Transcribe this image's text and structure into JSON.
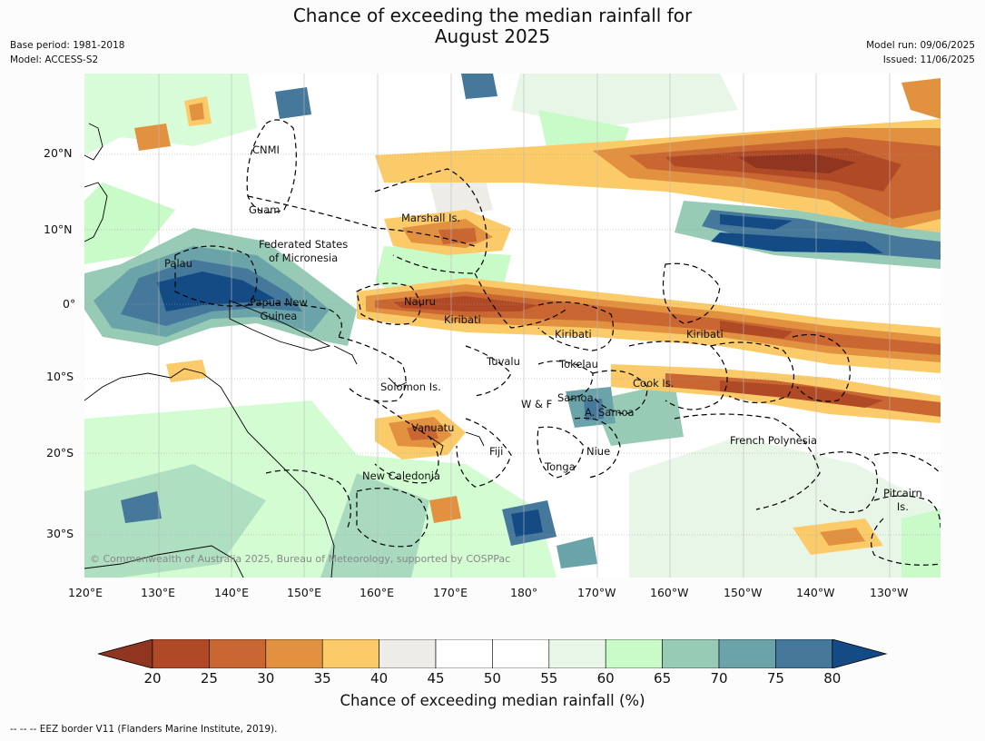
{
  "header": {
    "title_line1": "Chance of exceeding the median rainfall for",
    "title_line2": "August 2025",
    "base_period": "Base period: 1981-2018",
    "model": "Model: ACCESS-S2",
    "model_run": "Model run: 09/06/2025",
    "issued": "Issued: 11/06/2025"
  },
  "map": {
    "lat_labels": [
      "20°N",
      "10°N",
      "0°",
      "10°S",
      "20°S",
      "30°S"
    ],
    "lon_labels": [
      "120°E",
      "130°E",
      "140°E",
      "150°E",
      "160°E",
      "170°E",
      "180°",
      "170°W",
      "160°W",
      "150°W",
      "140°W",
      "130°W"
    ],
    "regions": [
      {
        "name": "CNMI"
      },
      {
        "name": "Guam"
      },
      {
        "name": "Marshall Is."
      },
      {
        "name": "Federated States\nof Micronesia"
      },
      {
        "name": "Palau"
      },
      {
        "name": "Papua New\nGuinea"
      },
      {
        "name": "Nauru"
      },
      {
        "name": "Kiribati"
      },
      {
        "name": "Kiribati"
      },
      {
        "name": "Kiribati"
      },
      {
        "name": "Tuvalu"
      },
      {
        "name": "Tokelau"
      },
      {
        "name": "Solomon Is."
      },
      {
        "name": "Cook Is."
      },
      {
        "name": "Samoa"
      },
      {
        "name": "W & F"
      },
      {
        "name": "A. Samoa"
      },
      {
        "name": "Vanuatu"
      },
      {
        "name": "Fiji"
      },
      {
        "name": "Niue"
      },
      {
        "name": "French Polynesia"
      },
      {
        "name": "Tonga"
      },
      {
        "name": "New Caledonia"
      },
      {
        "name": "Pitcairn\nIs."
      }
    ],
    "copyright": "© Commonwealth of Australia 2025, Bureau of Meteorology, supported by COSPPac"
  },
  "colorbar": {
    "ticks": [
      "20",
      "25",
      "30",
      "35",
      "40",
      "45",
      "50",
      "55",
      "60",
      "65",
      "70",
      "75",
      "80"
    ],
    "colors": {
      "lt20": "#8f3520",
      "b20_25": "#b04a26",
      "b25_30": "#c96632",
      "b30_35": "#e1913f",
      "b35_40": "#fbcb6a",
      "b40_45": "#eeece7",
      "b45_50": "#ffffff",
      "b50_55": "#ffffff",
      "b55_60": "#e8f6e8",
      "b60_65": "#c8fbc8",
      "b65_70": "#97cbb6",
      "b70_75": "#6aa3a8",
      "b75_80": "#45789b",
      "gt80": "#154b85"
    },
    "label": "Chance of exceeding median rainfall (%)"
  },
  "footnote": "--  --  -- EEZ border V11 (Flanders Marine Institute, 2019)."
}
